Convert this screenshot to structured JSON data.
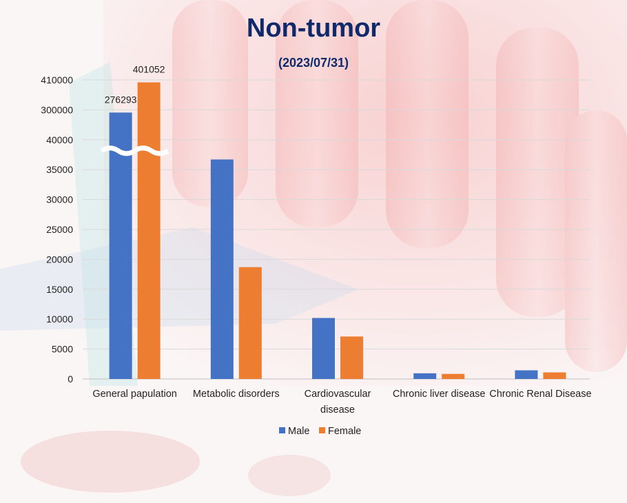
{
  "chart_data": {
    "type": "bar",
    "title": "Non-tumor",
    "subtitle": "(2023/07/31)",
    "categories": [
      [
        "General papulation"
      ],
      [
        "Metabolic disorders"
      ],
      [
        "Cardiovascular",
        "disease"
      ],
      [
        "Chronic liver disease"
      ],
      [
        "Chronic Renal Disease"
      ]
    ],
    "series": [
      {
        "name": "Male",
        "color": "#4472c4",
        "values": [
          276293,
          36700,
          10200,
          950,
          1450
        ]
      },
      {
        "name": "Female",
        "color": "#ed7d31",
        "values": [
          401052,
          18700,
          7100,
          850,
          1100
        ]
      }
    ],
    "yticks": [
      "0",
      "5000",
      "10000",
      "15000",
      "20000",
      "25000",
      "30000",
      "35000",
      "40000",
      "300000",
      "410000"
    ],
    "y_axis_break": {
      "lower_max": 40000,
      "upper_min": 300000,
      "upper_max": 410000
    },
    "data_labels": [
      {
        "series": 0,
        "category": 0,
        "text": "276293"
      },
      {
        "series": 1,
        "category": 0,
        "text": "401052"
      }
    ],
    "legend_position": "bottom",
    "grid": true
  }
}
